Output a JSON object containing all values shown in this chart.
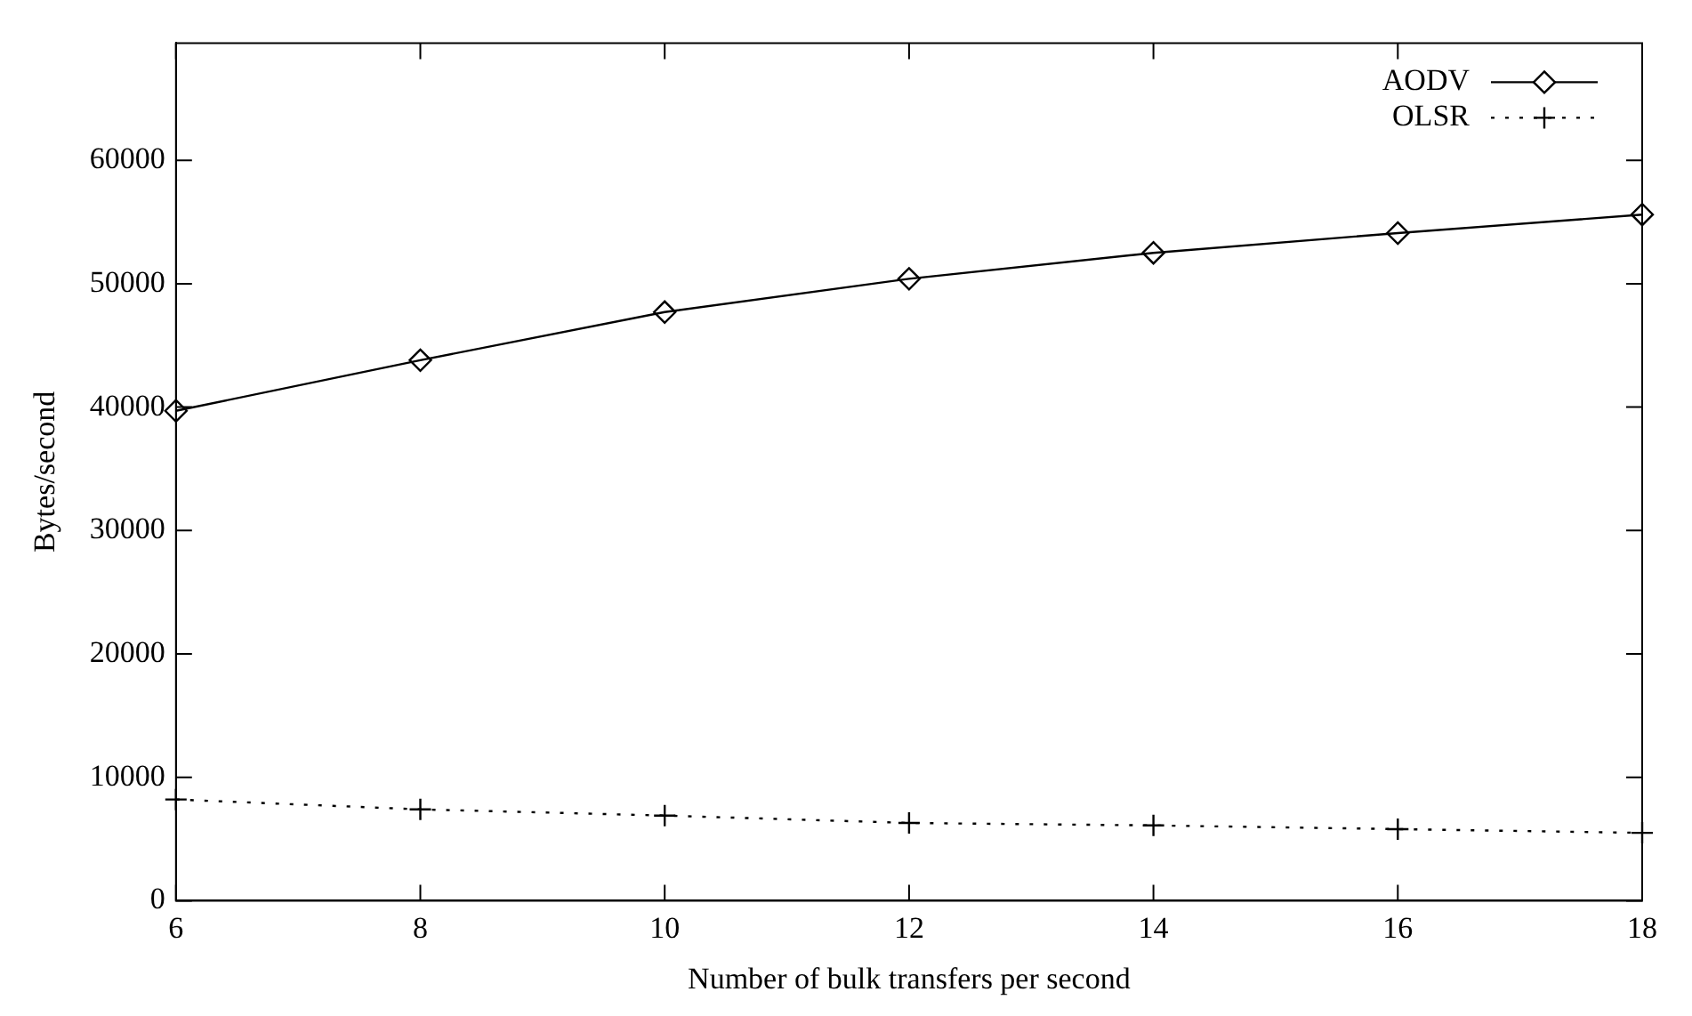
{
  "chart_data": {
    "type": "line",
    "xlabel": "Number of bulk transfers per second",
    "ylabel": "Bytes/second",
    "x": [
      6,
      8,
      10,
      12,
      14,
      16,
      18
    ],
    "series": [
      {
        "name": "AODV",
        "color": "#000000",
        "marker": "diamond",
        "line_style": "solid",
        "values": [
          39700,
          43800,
          47700,
          50400,
          52500,
          54100,
          55600
        ]
      },
      {
        "name": "OLSR",
        "color": "#000000",
        "marker": "cross",
        "line_style": "dotted",
        "values": [
          8200,
          7400,
          6900,
          6300,
          6100,
          5800,
          5500
        ]
      }
    ],
    "xlim": [
      6,
      18
    ],
    "xticks": [
      6,
      8,
      10,
      12,
      14,
      16,
      18
    ],
    "ylim": [
      0,
      69500
    ],
    "yticks": [
      0,
      10000,
      20000,
      30000,
      40000,
      50000,
      60000
    ],
    "grid": false,
    "legend": "top right"
  }
}
